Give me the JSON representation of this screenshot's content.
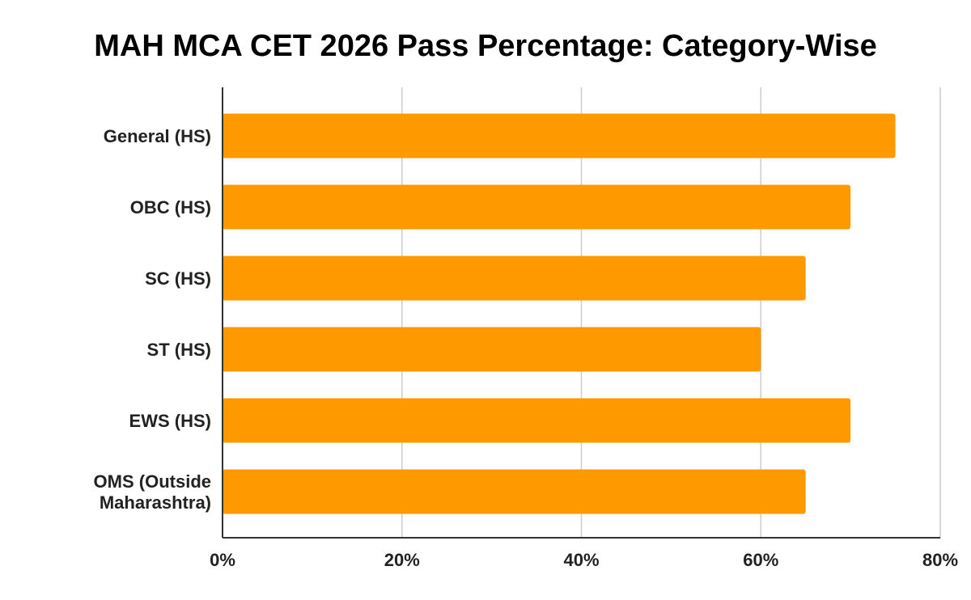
{
  "chart_data": {
    "type": "bar",
    "orientation": "horizontal",
    "title": "MAH MCA CET 2026 Pass Percentage: Category-Wise",
    "categories": [
      [
        "General (HS)"
      ],
      [
        "OBC (HS)"
      ],
      [
        "SC (HS)"
      ],
      [
        "ST (HS)"
      ],
      [
        "EWS (HS)"
      ],
      [
        "OMS (Outside",
        "Maharashtra)"
      ]
    ],
    "values": [
      75,
      70,
      65,
      60,
      70,
      65
    ],
    "xlim": [
      0,
      80
    ],
    "x_ticks": [
      0,
      20,
      40,
      60,
      80
    ],
    "x_tick_labels": [
      "0%",
      "20%",
      "40%",
      "60%",
      "80%"
    ],
    "grid": true,
    "bar_color": "#ff9900"
  }
}
